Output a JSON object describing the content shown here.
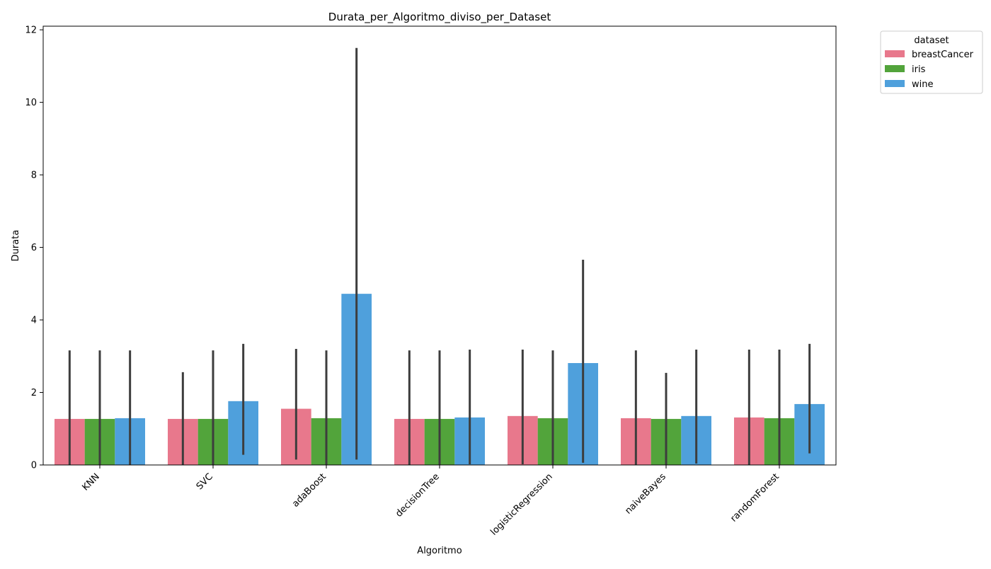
{
  "chart_data": {
    "type": "bar",
    "title": "Durata_per_Algoritmo_diviso_per_Dataset",
    "xlabel": "Algoritmo",
    "ylabel": "Durata",
    "ylim": [
      0,
      12.1
    ],
    "yticks": [
      0,
      2,
      4,
      6,
      8,
      10,
      12
    ],
    "grid": false,
    "legend": {
      "title": "dataset",
      "placement": "outside-top-right"
    },
    "categories": [
      "KNN",
      "SVC",
      "adaBoost",
      "decisionTree",
      "logisticRegression",
      "naiveBayes",
      "randomForest"
    ],
    "series": [
      {
        "name": "breastCancer",
        "color": "#e8788c",
        "values": [
          1.27,
          1.27,
          1.55,
          1.27,
          1.35,
          1.29,
          1.31
        ],
        "ci_low": [
          0.0,
          0.0,
          0.15,
          0.0,
          0.02,
          0.0,
          0.0
        ],
        "ci_high": [
          3.16,
          2.56,
          3.2,
          3.16,
          3.18,
          3.16,
          3.18
        ]
      },
      {
        "name": "iris",
        "color": "#52a43b",
        "values": [
          1.27,
          1.27,
          1.29,
          1.27,
          1.29,
          1.27,
          1.29
        ],
        "ci_low": [
          0.0,
          0.0,
          0.0,
          0.0,
          0.0,
          0.0,
          0.0
        ],
        "ci_high": [
          3.16,
          3.16,
          3.16,
          3.16,
          3.16,
          2.54,
          3.18
        ]
      },
      {
        "name": "wine",
        "color": "#4fa0dc",
        "values": [
          1.29,
          1.76,
          4.72,
          1.31,
          2.81,
          1.35,
          1.68
        ],
        "ci_low": [
          0.0,
          0.28,
          0.15,
          0.02,
          0.06,
          0.04,
          0.32
        ],
        "ci_high": [
          3.16,
          3.34,
          11.5,
          3.18,
          5.66,
          3.18,
          3.34
        ]
      }
    ]
  }
}
